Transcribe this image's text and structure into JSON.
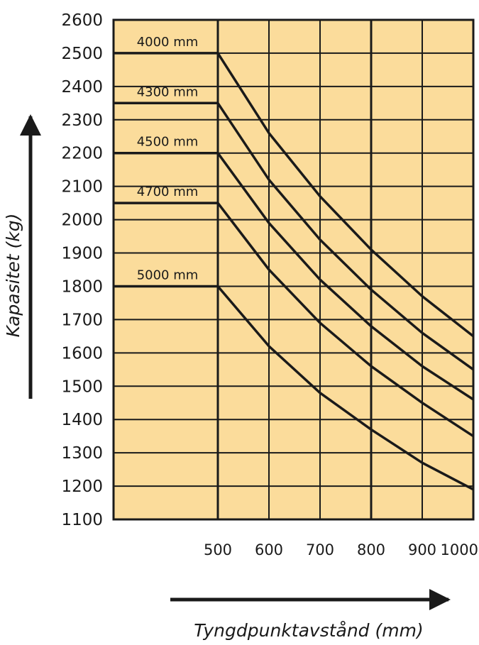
{
  "chart_data": {
    "type": "line",
    "xlabel": "Tyngdpunktavstånd (mm)",
    "ylabel": "Kapasitet (kg)",
    "xlim": [
      0,
      1000
    ],
    "ylim": [
      1100,
      2600
    ],
    "x_ticks": [
      500,
      600,
      700,
      800,
      900,
      1000
    ],
    "y_ticks": [
      2600,
      2500,
      2400,
      2300,
      2200,
      2100,
      2000,
      1900,
      1800,
      1700,
      1600,
      1500,
      1400,
      1300,
      1200,
      1100
    ],
    "grid": true,
    "colors": {
      "plot_background": "#fbdc9b",
      "line": "#1a1a1a"
    },
    "series": [
      {
        "name": "4000 mm",
        "x": [
          0,
          500,
          600,
          700,
          800,
          900,
          1000
        ],
        "y": [
          2500,
          2500,
          2260,
          2070,
          1910,
          1770,
          1650
        ]
      },
      {
        "name": "4300 mm",
        "x": [
          0,
          500,
          600,
          700,
          800,
          900,
          1000
        ],
        "y": [
          2350,
          2350,
          2120,
          1940,
          1790,
          1660,
          1550
        ]
      },
      {
        "name": "4500 mm",
        "x": [
          0,
          500,
          600,
          700,
          800,
          900,
          1000
        ],
        "y": [
          2200,
          2200,
          1990,
          1820,
          1680,
          1560,
          1460
        ]
      },
      {
        "name": "4700 mm",
        "x": [
          0,
          500,
          600,
          700,
          800,
          900,
          1000
        ],
        "y": [
          2050,
          2050,
          1850,
          1690,
          1560,
          1450,
          1350
        ]
      },
      {
        "name": "5000 mm",
        "x": [
          0,
          500,
          600,
          700,
          800,
          900,
          1000
        ],
        "y": [
          1800,
          1800,
          1620,
          1480,
          1370,
          1270,
          1190
        ]
      }
    ]
  }
}
